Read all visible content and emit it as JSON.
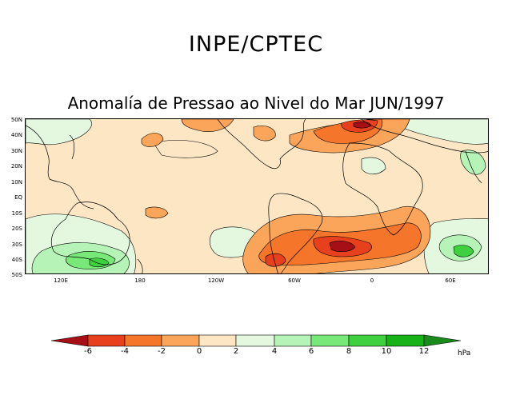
{
  "header": {
    "organization": "INPE/CPTEC",
    "title": "Anomalía de Pressao ao Nivel do Mar JUN/1997"
  },
  "map": {
    "lat_labels": [
      "50N",
      "40N",
      "30N",
      "20N",
      "10N",
      "EQ",
      "10S",
      "20S",
      "30S",
      "40S",
      "50S"
    ],
    "lon_labels": [
      "120E",
      "180",
      "120W",
      "60W",
      "0",
      "60E"
    ]
  },
  "colorbar": {
    "labels": [
      "-6",
      "-4",
      "-2",
      "0",
      "2",
      "4",
      "6",
      "8",
      "10",
      "12"
    ],
    "unit": "hPa",
    "colors": [
      "#a50f15",
      "#e8401c",
      "#f5762b",
      "#fba55a",
      "#fde6c4",
      "#e4f8e0",
      "#b6f3b6",
      "#78e878",
      "#3fd03f",
      "#17b217",
      "#1a8a1a"
    ]
  }
}
